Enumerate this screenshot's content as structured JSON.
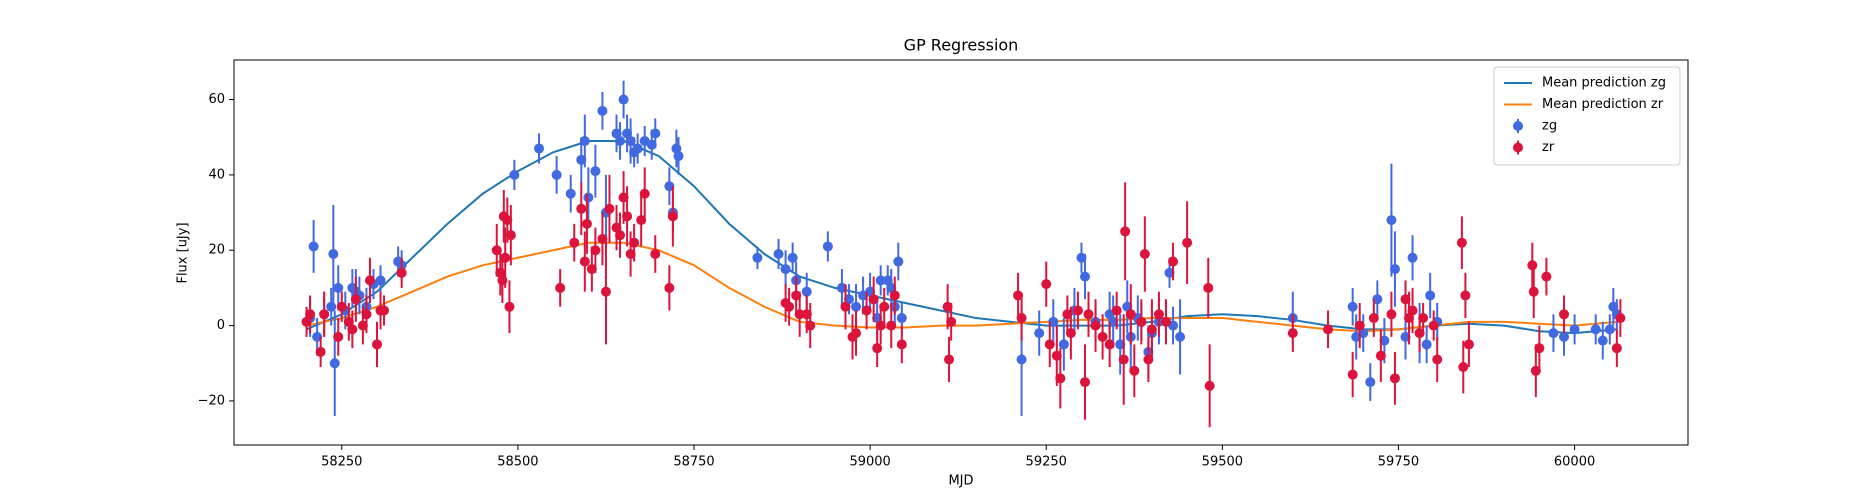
{
  "chart_data": {
    "type": "errorbar_gp",
    "title": "GP Regression",
    "x_label": "MJD",
    "y_label": "Flux [uJy]",
    "xlim": [
      58097,
      60161
    ],
    "ylim": [
      -31.7,
      70.5
    ],
    "xticks": [
      58250,
      58500,
      58750,
      59000,
      59250,
      59500,
      59750,
      60000
    ],
    "yticks": [
      {
        "value": -20,
        "label": "−20"
      },
      0,
      20,
      40,
      60
    ],
    "legend": "upper right",
    "series": [
      {
        "name": "Mean prediction zg",
        "type": "line",
        "color": "#1f77b4",
        "x": [
          58200,
          58250,
          58300,
          58350,
          58400,
          58450,
          58500,
          58550,
          58600,
          58650,
          58700,
          58750,
          58800,
          58850,
          58900,
          58950,
          59000,
          59050,
          59100,
          59150,
          59200,
          59250,
          59300,
          59350,
          59400,
          59450,
          59500,
          59550,
          59600,
          59650,
          59700,
          59750,
          59800,
          59850,
          59900,
          59950,
          60000,
          60060
        ],
        "values": [
          -1,
          3,
          9,
          18,
          27,
          35,
          41,
          46,
          49,
          49,
          45,
          37,
          27,
          19,
          13,
          10,
          8,
          6,
          4,
          2,
          1,
          0,
          0,
          0,
          1,
          2.5,
          3,
          2.5,
          1.5,
          0,
          -1,
          -1,
          0,
          0.5,
          0,
          -1.5,
          -2,
          -1
        ]
      },
      {
        "name": "Mean prediction zr",
        "type": "line",
        "color": "#ff7f0e",
        "x": [
          58200,
          58250,
          58300,
          58350,
          58400,
          58450,
          58500,
          58550,
          58600,
          58650,
          58700,
          58750,
          58800,
          58850,
          58900,
          58950,
          59000,
          59050,
          59100,
          59150,
          59200,
          59250,
          59300,
          59350,
          59400,
          59450,
          59500,
          59550,
          59600,
          59650,
          59700,
          59750,
          59800,
          59850,
          59900,
          59950,
          60000,
          60060
        ],
        "values": [
          0,
          2,
          5,
          9,
          13,
          16,
          18,
          20,
          22,
          22,
          20,
          16,
          10,
          5,
          1,
          0,
          -0.5,
          -0.5,
          0,
          0,
          0.5,
          1,
          1.5,
          1.5,
          2,
          2,
          2,
          1,
          0,
          -1,
          -1.5,
          -1,
          0,
          1,
          1,
          0.5,
          0,
          1
        ]
      },
      {
        "name": "zg",
        "type": "errorbar",
        "color": "#4169e1",
        "x": [
          58205,
          58210,
          58215,
          58225,
          58235,
          58238,
          58240,
          58245,
          58255,
          58265,
          58270,
          58275,
          58285,
          58295,
          58305,
          58330,
          58335,
          58495,
          58530,
          58555,
          58575,
          58590,
          58595,
          58600,
          58610,
          58620,
          58625,
          58640,
          58645,
          58650,
          58655,
          58660,
          58665,
          58670,
          58680,
          58690,
          58695,
          58715,
          58720,
          58725,
          58728,
          58840,
          58870,
          58880,
          58890,
          58895,
          58910,
          58940,
          58960,
          58970,
          58980,
          58990,
          59000,
          59010,
          59015,
          59025,
          59030,
          59035,
          59040,
          59045,
          59215,
          59240,
          59260,
          59275,
          59290,
          59300,
          59305,
          59320,
          59340,
          59345,
          59355,
          59365,
          59370,
          59380,
          59385,
          59395,
          59400,
          59410,
          59425,
          59430,
          59440,
          59600,
          59685,
          59690,
          59700,
          59710,
          59720,
          59730,
          59740,
          59745,
          59760,
          59770,
          59780,
          59790,
          59795,
          59805,
          59970,
          59985,
          60000,
          60030,
          60040,
          60050,
          60055,
          60060
        ],
        "values": [
          2,
          21,
          -3,
          3,
          5,
          19,
          -10,
          10,
          4,
          10,
          9,
          8,
          5,
          11,
          12,
          17,
          16,
          40,
          47,
          40,
          35,
          44,
          49,
          34,
          41,
          57,
          30,
          51,
          49,
          60,
          51,
          49,
          46,
          47,
          49,
          48,
          51,
          37,
          30,
          47,
          45,
          18,
          19,
          15,
          18,
          12,
          9,
          21,
          10,
          7,
          5,
          8,
          9,
          2,
          12,
          12,
          10,
          5,
          17,
          2,
          -9,
          -2,
          1,
          -5,
          4,
          18,
          13,
          1,
          3,
          1,
          -5,
          5,
          -3,
          2,
          1,
          -7,
          -2,
          1,
          14,
          0,
          -3,
          2,
          5,
          -3,
          -2,
          -15,
          7,
          -4,
          28,
          15,
          -3,
          18,
          -2,
          -5,
          8,
          1,
          -2,
          -3,
          -1,
          -1,
          -4,
          -1,
          5,
          3
        ],
        "errors": [
          5,
          7,
          5,
          6,
          5,
          13,
          14,
          6,
          5,
          5,
          6,
          5,
          5,
          4,
          4,
          4,
          4,
          4,
          4,
          5,
          5,
          6,
          7,
          8,
          7,
          5,
          10,
          5,
          5,
          5,
          5,
          6,
          4,
          4,
          4,
          4,
          4,
          5,
          5,
          5,
          5,
          3,
          4,
          5,
          4,
          5,
          5,
          4,
          5,
          4,
          6,
          5,
          5,
          6,
          4,
          4,
          5,
          5,
          5,
          4,
          15,
          6,
          6,
          7,
          6,
          4,
          6,
          5,
          6,
          7,
          8,
          7,
          9,
          6,
          5,
          7,
          6,
          6,
          4,
          5,
          10,
          7,
          5,
          6,
          5,
          5,
          5,
          6,
          15,
          10,
          6,
          6,
          8,
          5,
          6,
          5,
          5,
          5,
          4,
          4,
          5,
          4,
          5,
          4
        ]
      },
      {
        "name": "zr",
        "type": "errorbar",
        "color": "#dc143c",
        "x": [
          58200,
          58205,
          58220,
          58225,
          58245,
          58250,
          58260,
          58265,
          58270,
          58280,
          58285,
          58290,
          58300,
          58305,
          58310,
          58335,
          58470,
          58475,
          58478,
          58480,
          58482,
          58485,
          58488,
          58490,
          58560,
          58580,
          58590,
          58595,
          58598,
          58605,
          58610,
          58620,
          58625,
          58630,
          58640,
          58645,
          58650,
          58655,
          58660,
          58665,
          58675,
          58680,
          58695,
          58715,
          58720,
          58880,
          58885,
          58895,
          58900,
          58910,
          58915,
          58965,
          58975,
          58980,
          58995,
          59005,
          59010,
          59015,
          59020,
          59030,
          59035,
          59045,
          59110,
          59112,
          59115,
          59210,
          59215,
          59250,
          59255,
          59265,
          59270,
          59280,
          59285,
          59295,
          59305,
          59310,
          59320,
          59330,
          59340,
          59350,
          59360,
          59362,
          59370,
          59375,
          59385,
          59390,
          59395,
          59400,
          59410,
          59420,
          59430,
          59450,
          59480,
          59482,
          59600,
          59650,
          59685,
          59695,
          59715,
          59725,
          59740,
          59745,
          59760,
          59765,
          59770,
          59780,
          59785,
          59800,
          59805,
          59840,
          59842,
          59845,
          59850,
          59940,
          59942,
          59945,
          59950,
          59960,
          59985,
          60060,
          60065
        ],
        "values": [
          1,
          3,
          -7,
          3,
          -3,
          5,
          1,
          -1,
          7,
          0,
          3,
          12,
          -5,
          4,
          4,
          14,
          20,
          14,
          12,
          29,
          18,
          28,
          5,
          24,
          10,
          22,
          31,
          17,
          27,
          15,
          20,
          23,
          9,
          31,
          26,
          24,
          34,
          29,
          19,
          22,
          28,
          35,
          19,
          10,
          29,
          6,
          5,
          8,
          3,
          3,
          0,
          5,
          -3,
          -2,
          4,
          7,
          -6,
          0,
          5,
          0,
          8,
          -5,
          5,
          -9,
          1,
          8,
          2,
          11,
          -5,
          -8,
          -14,
          3,
          -2,
          4,
          -15,
          3,
          0,
          -3,
          -5,
          4,
          -9,
          25,
          3,
          -12,
          1,
          19,
          -9,
          -1,
          3,
          1,
          17,
          22,
          10,
          -16,
          -2,
          -1,
          -13,
          0,
          2,
          -8,
          3,
          -14,
          7,
          2,
          4,
          -2,
          2,
          0,
          -9,
          22,
          -11,
          8,
          -5,
          16,
          9,
          -12,
          -6,
          13,
          3,
          -6,
          2
        ],
        "errors": [
          4,
          5,
          4,
          6,
          5,
          4,
          5,
          5,
          6,
          5,
          5,
          6,
          6,
          5,
          4,
          4,
          7,
          6,
          6,
          7,
          8,
          6,
          7,
          8,
          5,
          5,
          7,
          8,
          8,
          6,
          6,
          7,
          14,
          9,
          6,
          6,
          7,
          8,
          6,
          5,
          7,
          7,
          5,
          6,
          8,
          5,
          5,
          5,
          6,
          5,
          6,
          6,
          6,
          6,
          5,
          6,
          5,
          5,
          5,
          6,
          5,
          5,
          6,
          6,
          5,
          6,
          6,
          6,
          6,
          8,
          8,
          5,
          7,
          5,
          10,
          6,
          7,
          6,
          6,
          5,
          12,
          13,
          8,
          7,
          6,
          10,
          6,
          8,
          6,
          6,
          5,
          11,
          8,
          11,
          5,
          5,
          6,
          6,
          5,
          7,
          6,
          7,
          5,
          7,
          6,
          5,
          4,
          4,
          6,
          7,
          7,
          6,
          6,
          6,
          7,
          7,
          6,
          5,
          5,
          5,
          5
        ]
      }
    ]
  }
}
